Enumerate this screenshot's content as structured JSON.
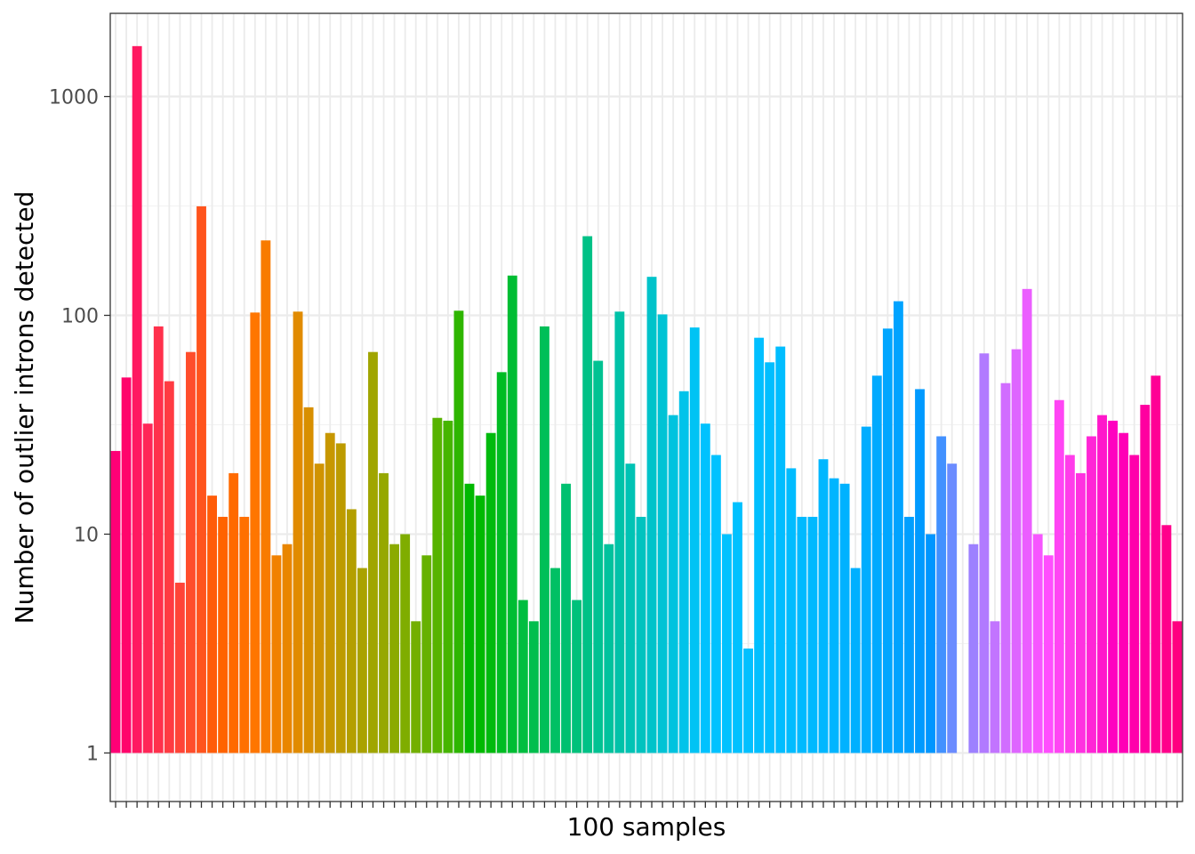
{
  "chart_data": {
    "type": "bar",
    "title": "",
    "xlabel": "100 samples",
    "ylabel": "Number of outlier introns detected",
    "y_scale": "log10",
    "ylim": [
      0.6,
      2400
    ],
    "y_ticks": [
      1,
      10,
      100,
      1000
    ],
    "y_tick_labels": [
      "1",
      "10",
      "100",
      "1000"
    ],
    "grid": true,
    "legend": "none",
    "n_categories": 100,
    "values": [
      24,
      52,
      1700,
      32,
      89,
      50,
      6,
      68,
      315,
      15,
      12,
      19,
      12,
      103,
      220,
      8,
      9,
      104,
      38,
      21,
      29,
      26,
      13,
      7,
      68,
      19,
      9,
      10,
      4,
      8,
      34,
      33,
      105,
      17,
      15,
      29,
      55,
      152,
      5,
      4,
      89,
      7,
      17,
      5,
      230,
      62,
      9,
      104,
      21,
      12,
      150,
      101,
      35,
      45,
      88,
      32,
      23,
      10,
      14,
      3,
      79,
      61,
      72,
      20,
      12,
      12,
      22,
      18,
      17,
      7,
      31,
      53,
      87,
      116,
      12,
      46,
      10,
      28,
      21,
      1,
      9,
      67,
      4,
      49,
      70,
      132,
      10,
      8,
      41,
      23,
      19,
      28,
      35,
      33,
      29,
      23,
      39,
      53,
      11,
      4
    ]
  }
}
